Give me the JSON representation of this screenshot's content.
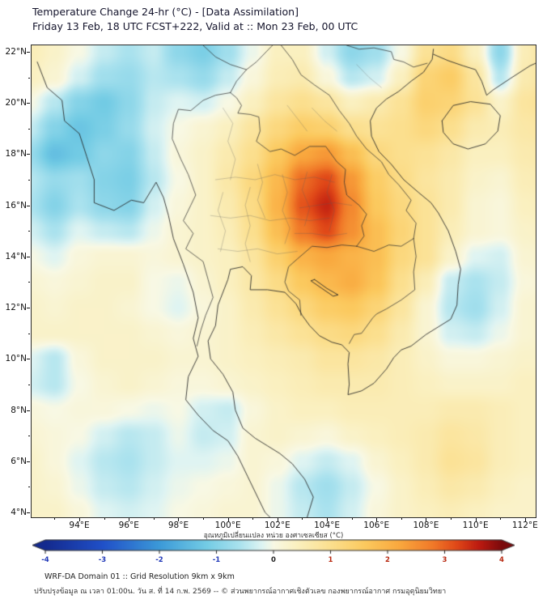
{
  "header": {
    "title": "Temperature Change 24-hr (°C) - [Data Assimilation]",
    "subtitle": "Friday 13 Feb, 18 UTC FCST+222, Valid at :: Mon 23 Feb, 00 UTC"
  },
  "map": {
    "x_ticks": [
      {
        "lon": 94,
        "label": "94°E"
      },
      {
        "lon": 96,
        "label": "96°E"
      },
      {
        "lon": 98,
        "label": "98°E"
      },
      {
        "lon": 100,
        "label": "100°E"
      },
      {
        "lon": 102,
        "label": "102°E"
      },
      {
        "lon": 104,
        "label": "104°E"
      },
      {
        "lon": 106,
        "label": "106°E"
      },
      {
        "lon": 108,
        "label": "108°E"
      },
      {
        "lon": 110,
        "label": "110°E"
      },
      {
        "lon": 112,
        "label": "112°E"
      }
    ],
    "y_ticks": [
      {
        "lat": 22,
        "label": "22°N"
      },
      {
        "lat": 20,
        "label": "20°N"
      },
      {
        "lat": 18,
        "label": "18°N"
      },
      {
        "lat": 16,
        "label": "16°N"
      },
      {
        "lat": 14,
        "label": "14°N"
      },
      {
        "lat": 12,
        "label": "12°N"
      },
      {
        "lat": 10,
        "label": "10°N"
      },
      {
        "lat": 8,
        "label": "8°N"
      },
      {
        "lat": 6,
        "label": "6°N"
      },
      {
        "lat": 4,
        "label": "4°N"
      }
    ]
  },
  "colorbar": {
    "label": "อุณหภูมิเปลี่ยนแปลง หน่วย องศาเซลเซียส (°C)",
    "min": -4,
    "max": 4,
    "ticks": [
      {
        "value": -4,
        "label": "-4"
      },
      {
        "value": -3,
        "label": "-3"
      },
      {
        "value": -2,
        "label": "-2"
      },
      {
        "value": -1,
        "label": "-1"
      },
      {
        "value": 0,
        "label": "0"
      },
      {
        "value": 1,
        "label": "1"
      },
      {
        "value": 2,
        "label": "2"
      },
      {
        "value": 3,
        "label": "3"
      },
      {
        "value": 4,
        "label": "4"
      }
    ],
    "negative_label_color": "#2038b8",
    "zero_label_color": "#222222",
    "positive_label_color": "#b82810"
  },
  "footer": {
    "line1": "WRF-DA Domain 01 :: Grid Resolution 9km x 9km",
    "line2": "ปรับปรุงข้อมูล ณ เวลา 01:00น. วัน ส. ที่ 14 ก.พ. 2569 -- © ส่วนพยากรณ์อากาศเชิงตัวเลข กองพยากรณ์อากาศ กรมอุตุนิยมวิทยา"
  },
  "chart_data": {
    "type": "heatmap",
    "title": "Temperature Change 24-hr (°C) - [Data Assimilation]",
    "units": "°C",
    "lon_range": [
      92.07,
      112.43
    ],
    "lat_range": [
      3.81,
      22.25
    ],
    "colorbar_range": [
      -4,
      4
    ],
    "grid_lon": [
      92,
      93,
      94,
      95,
      96,
      97,
      98,
      99,
      100,
      101,
      102,
      103,
      104,
      105,
      106,
      107,
      108,
      109,
      110,
      111,
      112,
      113
    ],
    "grid_lat": [
      23,
      22,
      21,
      20,
      19,
      18,
      17,
      16,
      15,
      14,
      13,
      12,
      11,
      10,
      9,
      8,
      7,
      6,
      5,
      4,
      3
    ],
    "values_degC": [
      [
        0.6,
        0.4,
        0.1,
        -0.3,
        -0.5,
        -0.4,
        -0.8,
        -1.0,
        -0.6,
        -0.1,
        0.4,
        0.3,
        -0.4,
        -0.8,
        -0.6,
        -0.1,
        0.7,
        1.0,
        0.4,
        -0.7,
        0.6,
        1.0
      ],
      [
        0.5,
        0.3,
        0.0,
        -0.4,
        -0.6,
        -0.4,
        -0.9,
        -1.1,
        -0.7,
        -0.1,
        0.4,
        0.4,
        -0.3,
        -0.9,
        -0.7,
        0.0,
        0.9,
        1.1,
        0.4,
        -0.9,
        0.5,
        1.0
      ],
      [
        0.4,
        0.2,
        -0.3,
        -0.7,
        -0.8,
        -0.5,
        -0.6,
        -0.8,
        -0.4,
        0.1,
        0.5,
        0.6,
        0.1,
        -0.5,
        -0.3,
        0.4,
        1.3,
        1.5,
        0.8,
        -0.5,
        0.6,
        0.9
      ],
      [
        0.0,
        -0.5,
        -1.0,
        -1.2,
        -0.9,
        -0.4,
        -0.2,
        -0.3,
        0.0,
        0.4,
        0.8,
        1.0,
        0.8,
        0.4,
        0.6,
        0.9,
        1.4,
        1.3,
        0.9,
        0.3,
        0.8,
        1.0
      ],
      [
        -0.4,
        -1.0,
        -1.3,
        -1.1,
        -0.8,
        -0.3,
        0.0,
        0.2,
        0.4,
        0.8,
        1.2,
        1.5,
        1.4,
        1.0,
        0.9,
        1.0,
        1.2,
        1.0,
        0.6,
        0.5,
        0.7,
        0.8
      ],
      [
        -0.8,
        -1.4,
        -1.2,
        -0.9,
        -1.0,
        -0.4,
        0.1,
        0.3,
        0.6,
        1.0,
        1.6,
        2.2,
        2.4,
        1.8,
        1.2,
        1.0,
        0.9,
        0.7,
        0.4,
        0.4,
        0.6,
        0.7
      ],
      [
        -0.5,
        -0.8,
        -0.7,
        -1.0,
        -1.1,
        -0.5,
        0.0,
        0.3,
        0.7,
        1.2,
        1.9,
        2.9,
        3.2,
        2.4,
        1.5,
        1.1,
        0.8,
        0.6,
        0.3,
        0.2,
        0.5,
        0.6
      ],
      [
        -0.6,
        -1.0,
        -0.6,
        -0.9,
        -1.0,
        -0.3,
        0.1,
        0.3,
        0.6,
        1.1,
        2.0,
        3.1,
        3.5,
        2.6,
        1.6,
        1.2,
        0.9,
        0.6,
        0.2,
        0.1,
        0.4,
        0.5
      ],
      [
        -0.3,
        -0.6,
        -0.2,
        -0.4,
        -0.5,
        -0.1,
        0.2,
        0.3,
        0.5,
        1.0,
        1.8,
        2.8,
        3.2,
        2.5,
        1.8,
        1.3,
        0.9,
        0.5,
        0.2,
        0.1,
        0.3,
        0.4
      ],
      [
        0.0,
        -0.2,
        0.1,
        0.2,
        0.2,
        0.1,
        0.2,
        0.3,
        0.4,
        0.8,
        1.4,
        2.0,
        2.2,
        2.0,
        1.8,
        1.2,
        0.9,
        0.3,
        -0.2,
        -0.3,
        0.2,
        0.3
      ],
      [
        0.2,
        0.1,
        0.2,
        0.3,
        0.3,
        0.0,
        -0.1,
        0.2,
        0.4,
        0.7,
        1.1,
        1.6,
        1.9,
        2.1,
        1.7,
        1.0,
        0.5,
        -0.4,
        -0.6,
        -0.4,
        0.1,
        0.2
      ],
      [
        0.3,
        0.2,
        0.3,
        0.3,
        0.2,
        0.0,
        -0.2,
        0.1,
        0.3,
        0.6,
        0.9,
        1.2,
        1.5,
        1.6,
        1.3,
        0.8,
        0.2,
        -0.5,
        -0.7,
        -0.3,
        0.2,
        0.3
      ],
      [
        0.3,
        0.3,
        0.3,
        0.3,
        0.3,
        0.2,
        0.1,
        0.2,
        0.3,
        0.5,
        0.7,
        0.9,
        1.1,
        1.2,
        1.0,
        0.6,
        0.2,
        -0.3,
        -0.4,
        -0.1,
        0.2,
        0.3
      ],
      [
        -0.2,
        -0.5,
        0.1,
        0.3,
        0.3,
        0.3,
        0.2,
        0.2,
        0.3,
        0.4,
        0.5,
        0.6,
        0.8,
        0.8,
        0.7,
        0.5,
        0.3,
        0.1,
        0.1,
        0.2,
        0.3,
        0.3
      ],
      [
        -0.3,
        -0.5,
        0.0,
        0.2,
        0.3,
        0.2,
        0.1,
        0.1,
        0.2,
        0.3,
        0.4,
        0.5,
        0.6,
        0.6,
        0.6,
        0.5,
        0.4,
        0.3,
        0.3,
        0.3,
        0.4,
        0.4
      ],
      [
        0.1,
        0.0,
        0.1,
        0.1,
        0.0,
        -0.1,
        0.0,
        -0.3,
        -0.4,
        0.1,
        0.3,
        0.4,
        0.4,
        0.5,
        0.5,
        0.5,
        0.5,
        0.6,
        0.6,
        0.5,
        0.4,
        0.4
      ],
      [
        0.2,
        0.1,
        0.0,
        -0.3,
        -0.5,
        -0.4,
        -0.1,
        -0.4,
        -0.3,
        0.2,
        0.3,
        0.2,
        0.1,
        0.3,
        0.4,
        0.5,
        0.6,
        0.8,
        0.7,
        0.5,
        0.4,
        0.4
      ],
      [
        0.3,
        0.1,
        -0.2,
        -0.5,
        -0.6,
        -0.4,
        -0.2,
        -0.2,
        -0.1,
        0.2,
        0.1,
        -0.2,
        -0.4,
        -0.2,
        0.2,
        0.4,
        0.6,
        0.9,
        0.8,
        0.5,
        0.4,
        0.3
      ],
      [
        0.3,
        0.2,
        -0.1,
        -0.4,
        -0.5,
        -0.3,
        -0.1,
        0.0,
        0.1,
        0.2,
        -0.1,
        -0.5,
        -0.7,
        -0.4,
        0.0,
        0.3,
        0.5,
        0.7,
        0.6,
        0.4,
        0.3,
        0.3
      ],
      [
        0.3,
        0.3,
        0.1,
        -0.2,
        -0.3,
        -0.2,
        0.0,
        0.1,
        0.2,
        0.2,
        -0.1,
        -0.4,
        -0.6,
        -0.3,
        0.1,
        0.3,
        0.4,
        0.5,
        0.4,
        0.3,
        0.3,
        0.3
      ],
      [
        0.3,
        0.3,
        0.1,
        -0.2,
        -0.3,
        -0.2,
        0.0,
        0.1,
        0.2,
        0.2,
        -0.1,
        -0.4,
        -0.5,
        -0.3,
        0.1,
        0.3,
        0.4,
        0.5,
        0.4,
        0.3,
        0.3,
        0.3
      ]
    ],
    "color_stops": [
      {
        "v": -4.0,
        "c": "#142a8e"
      },
      {
        "v": -3.0,
        "c": "#2050c8"
      },
      {
        "v": -2.0,
        "c": "#3c9ad8"
      },
      {
        "v": -1.2,
        "c": "#72cbe4"
      },
      {
        "v": -0.6,
        "c": "#aae2ee"
      },
      {
        "v": -0.2,
        "c": "#dff4f2"
      },
      {
        "v": 0.0,
        "c": "#f8f8e4"
      },
      {
        "v": 0.4,
        "c": "#faf0c0"
      },
      {
        "v": 1.0,
        "c": "#fbdf8e"
      },
      {
        "v": 1.6,
        "c": "#fbc95e"
      },
      {
        "v": 2.2,
        "c": "#f9a83e"
      },
      {
        "v": 2.8,
        "c": "#f07828"
      },
      {
        "v": 3.2,
        "c": "#e04818"
      },
      {
        "v": 3.6,
        "c": "#bc1a10"
      },
      {
        "v": 4.0,
        "c": "#7a0a0c"
      }
    ]
  }
}
